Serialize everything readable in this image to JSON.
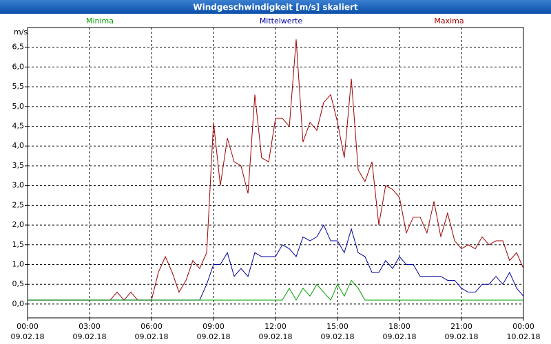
{
  "chart_data": {
    "type": "line",
    "title": "Windgeschwindigkeit [m/s] skaliert",
    "y_label": "m/s",
    "x": [
      0,
      0.33,
      0.67,
      1,
      1.33,
      1.67,
      2,
      2.33,
      2.67,
      3,
      3.33,
      3.67,
      4,
      4.33,
      4.67,
      5,
      5.33,
      5.67,
      6,
      6.33,
      6.67,
      7,
      7.33,
      7.67,
      8,
      8.33,
      8.67,
      9,
      9.33,
      9.67,
      10,
      10.33,
      10.67,
      11,
      11.33,
      11.67,
      12,
      12.33,
      12.67,
      13,
      13.33,
      13.67,
      14,
      14.33,
      14.67,
      15,
      15.33,
      15.67,
      16,
      16.33,
      16.67,
      17,
      17.33,
      17.67,
      18,
      18.33,
      18.67,
      19,
      19.33,
      19.67,
      20,
      20.33,
      20.67,
      21,
      21.33,
      21.67,
      22,
      22.33,
      22.67,
      23,
      23.33,
      23.67,
      24
    ],
    "series": [
      {
        "name": "Maxima",
        "color": "#a00000",
        "values": [
          0.1,
          0.1,
          0.1,
          0.1,
          0.1,
          0.1,
          0.1,
          0.1,
          0.1,
          0.1,
          0.1,
          0.1,
          0.1,
          0.3,
          0.1,
          0.3,
          0.1,
          0.1,
          0.1,
          0.8,
          1.2,
          0.8,
          0.3,
          0.6,
          1.1,
          0.9,
          1.3,
          4.6,
          3.0,
          4.2,
          3.6,
          3.5,
          2.8,
          5.3,
          3.7,
          3.6,
          4.7,
          4.7,
          4.5,
          6.7,
          4.1,
          4.6,
          4.4,
          5.1,
          5.3,
          4.6,
          3.7,
          5.7,
          3.4,
          3.1,
          3.6,
          2.0,
          3.0,
          2.9,
          2.7,
          1.8,
          2.2,
          2.2,
          1.8,
          2.6,
          1.7,
          2.3,
          1.6,
          1.4,
          1.5,
          1.4,
          1.7,
          1.5,
          1.6,
          1.6,
          1.1,
          1.3,
          0.9
        ]
      },
      {
        "name": "Mittelwerte",
        "color": "#0000a0",
        "values": [
          0.1,
          0.1,
          0.1,
          0.1,
          0.1,
          0.1,
          0.1,
          0.1,
          0.1,
          0.1,
          0.1,
          0.1,
          0.1,
          0.1,
          0.1,
          0.1,
          0.1,
          0.1,
          0.1,
          0.1,
          0.1,
          0.1,
          0.1,
          0.1,
          0.1,
          0.1,
          0.5,
          1.0,
          1.0,
          1.3,
          0.7,
          0.9,
          0.7,
          1.3,
          1.2,
          1.2,
          1.2,
          1.5,
          1.4,
          1.2,
          1.7,
          1.6,
          1.7,
          2.0,
          1.6,
          1.6,
          1.3,
          1.9,
          1.3,
          1.2,
          0.8,
          0.8,
          1.1,
          0.9,
          1.2,
          1.0,
          1.0,
          0.7,
          0.7,
          0.7,
          0.7,
          0.6,
          0.6,
          0.4,
          0.3,
          0.3,
          0.5,
          0.5,
          0.7,
          0.5,
          0.8,
          0.4,
          0.2
        ]
      },
      {
        "name": "Minima",
        "color": "#00a000",
        "values": [
          0.1,
          0.1,
          0.1,
          0.1,
          0.1,
          0.1,
          0.1,
          0.1,
          0.1,
          0.1,
          0.1,
          0.1,
          0.1,
          0.1,
          0.1,
          0.1,
          0.1,
          0.1,
          0.1,
          0.1,
          0.1,
          0.1,
          0.1,
          0.1,
          0.1,
          0.1,
          0.1,
          0.1,
          0.1,
          0.1,
          0.1,
          0.1,
          0.1,
          0.1,
          0.1,
          0.1,
          0.1,
          0.1,
          0.4,
          0.1,
          0.4,
          0.2,
          0.5,
          0.3,
          0.1,
          0.5,
          0.2,
          0.6,
          0.4,
          0.1,
          0.1,
          0.1,
          0.1,
          0.1,
          0.1,
          0.1,
          0.1,
          0.1,
          0.1,
          0.1,
          0.1,
          0.1,
          0.1,
          0.1,
          0.1,
          0.1,
          0.1,
          0.1,
          0.1,
          0.1,
          0.1,
          0.1,
          0.1
        ]
      }
    ],
    "xlim": [
      0,
      24
    ],
    "xticks": [
      {
        "value": 0,
        "label": "00:00"
      },
      {
        "value": 3,
        "label": "03:00"
      },
      {
        "value": 6,
        "label": "06:00"
      },
      {
        "value": 9,
        "label": "09:00"
      },
      {
        "value": 12,
        "label": "12:00"
      },
      {
        "value": 15,
        "label": "15:00"
      },
      {
        "value": 18,
        "label": "18:00"
      },
      {
        "value": 21,
        "label": "21:00"
      },
      {
        "value": 24,
        "label": "00:00"
      }
    ],
    "xtick_dates": [
      "09.02.18",
      "09.02.18",
      "09.02.18",
      "09.02.18",
      "09.02.18",
      "09.02.18",
      "09.02.18",
      "09.02.18",
      "10.02.18"
    ],
    "ylim": [
      -0.35,
      7.0
    ],
    "yticks": [
      {
        "value": 0,
        "label": "0,0"
      },
      {
        "value": 0.5,
        "label": "0,5"
      },
      {
        "value": 1,
        "label": "1,0"
      },
      {
        "value": 1.5,
        "label": "1,5"
      },
      {
        "value": 2,
        "label": "2,0"
      },
      {
        "value": 2.5,
        "label": "2,5"
      },
      {
        "value": 3,
        "label": "3,0"
      },
      {
        "value": 3.5,
        "label": "3,5"
      },
      {
        "value": 4,
        "label": "4,0"
      },
      {
        "value": 4.5,
        "label": "4,5"
      },
      {
        "value": 5,
        "label": "5,0"
      },
      {
        "value": 5.5,
        "label": "5,5"
      },
      {
        "value": 6,
        "label": "6,0"
      },
      {
        "value": 6.5,
        "label": "6,5"
      }
    ],
    "grid": true
  }
}
